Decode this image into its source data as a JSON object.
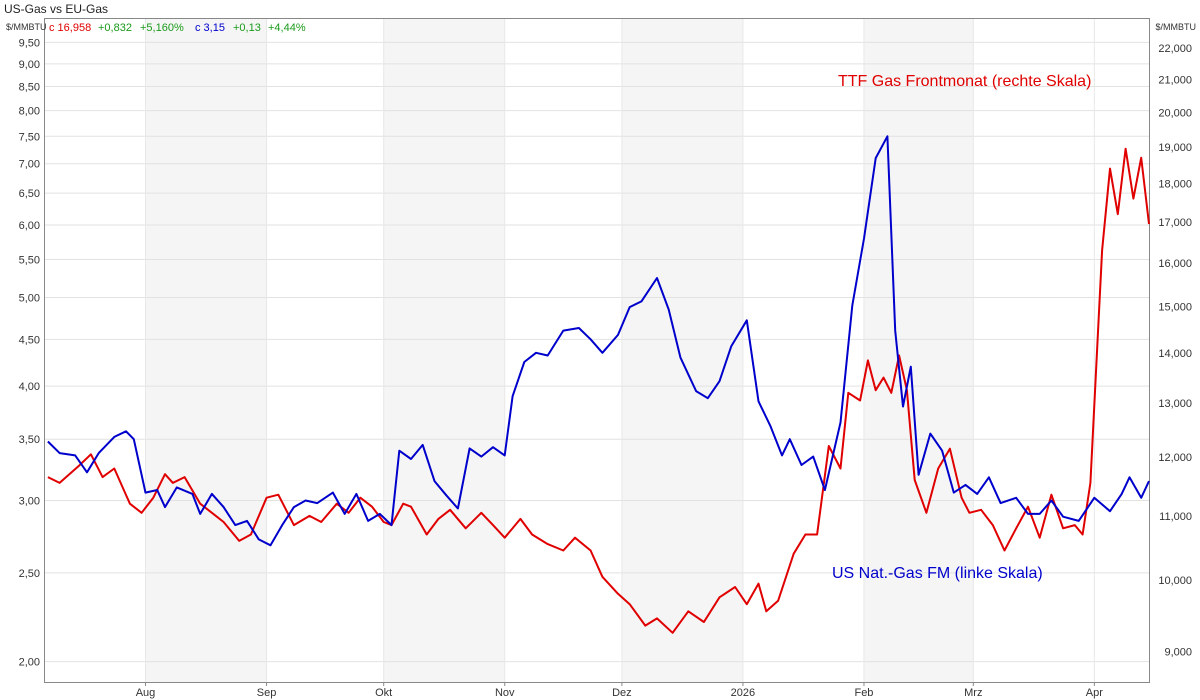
{
  "chart_data": {
    "type": "line",
    "title": "US-Gas vs EU-Gas",
    "left_axis": {
      "unit": "$/MMBTU",
      "scale": "log",
      "range": [
        1.9,
        10.1
      ],
      "ticks": [
        "2,00",
        "2,50",
        "3,00",
        "3,50",
        "4,00",
        "4,50",
        "5,00",
        "5,50",
        "6,00",
        "6,50",
        "7,00",
        "7,50",
        "8,00",
        "8,50",
        "9,00",
        "9,50"
      ]
    },
    "right_axis": {
      "unit": "$/MMBTU",
      "scale": "log",
      "range": [
        8.6,
        23.0
      ],
      "ticks": [
        "9,000",
        "10,000",
        "11,000",
        "12,000",
        "13,000",
        "14,000",
        "15,000",
        "16,000",
        "17,000",
        "18,000",
        "19,000",
        "20,000",
        "21,000",
        "22,000"
      ]
    },
    "x_axis": {
      "ticks": [
        {
          "label": "Aug",
          "date": "2025-08-01"
        },
        {
          "label": "Sep",
          "date": "2025-09-01"
        },
        {
          "label": "Okt",
          "date": "2025-10-01"
        },
        {
          "label": "Nov",
          "date": "2025-11-01"
        },
        {
          "label": "Dez",
          "date": "2025-12-01"
        },
        {
          "label": "2026",
          "date": "2026-01-01"
        },
        {
          "label": "Feb",
          "date": "2026-02-01"
        },
        {
          "label": "Mrz",
          "date": "2026-03-01"
        },
        {
          "label": "Apr",
          "date": "2026-04-01"
        }
      ],
      "range": [
        "2025-07-06",
        "2026-04-15"
      ]
    },
    "grid": true,
    "legend": {
      "ttf": {
        "close_label": "c 16,958",
        "change": "+0,832",
        "change_pct": "+5,160%"
      },
      "us": {
        "close_label": "c 3,15",
        "change": "+0,13",
        "change_pct": "+4,44%"
      }
    },
    "series": [
      {
        "name": "TTF Gas Frontmonat (rechte Skala)",
        "color": "#e00000",
        "axis": "right",
        "points": [
          [
            "2025-07-07",
            11.65
          ],
          [
            "2025-07-10",
            11.55
          ],
          [
            "2025-07-15",
            11.85
          ],
          [
            "2025-07-18",
            12.05
          ],
          [
            "2025-07-21",
            11.65
          ],
          [
            "2025-07-24",
            11.8
          ],
          [
            "2025-07-28",
            11.2
          ],
          [
            "2025-07-31",
            11.05
          ],
          [
            "2025-08-03",
            11.3
          ],
          [
            "2025-08-06",
            11.7
          ],
          [
            "2025-08-08",
            11.55
          ],
          [
            "2025-08-11",
            11.65
          ],
          [
            "2025-08-15",
            11.2
          ],
          [
            "2025-08-18",
            11.05
          ],
          [
            "2025-08-21",
            10.9
          ],
          [
            "2025-08-25",
            10.6
          ],
          [
            "2025-08-28",
            10.7
          ],
          [
            "2025-09-01",
            11.3
          ],
          [
            "2025-09-04",
            11.35
          ],
          [
            "2025-09-08",
            10.85
          ],
          [
            "2025-09-12",
            11.0
          ],
          [
            "2025-09-15",
            10.9
          ],
          [
            "2025-09-19",
            11.2
          ],
          [
            "2025-09-22",
            11.05
          ],
          [
            "2025-09-25",
            11.3
          ],
          [
            "2025-09-28",
            11.15
          ],
          [
            "2025-10-01",
            10.9
          ],
          [
            "2025-10-03",
            10.85
          ],
          [
            "2025-10-06",
            11.2
          ],
          [
            "2025-10-08",
            11.15
          ],
          [
            "2025-10-12",
            10.7
          ],
          [
            "2025-10-15",
            10.95
          ],
          [
            "2025-10-18",
            11.1
          ],
          [
            "2025-10-22",
            10.8
          ],
          [
            "2025-10-26",
            11.05
          ],
          [
            "2025-10-29",
            10.85
          ],
          [
            "2025-11-01",
            10.65
          ],
          [
            "2025-11-05",
            10.95
          ],
          [
            "2025-11-08",
            10.7
          ],
          [
            "2025-11-12",
            10.55
          ],
          [
            "2025-11-16",
            10.45
          ],
          [
            "2025-11-19",
            10.65
          ],
          [
            "2025-11-23",
            10.45
          ],
          [
            "2025-11-26",
            10.05
          ],
          [
            "2025-11-30",
            9.8
          ],
          [
            "2025-12-03",
            9.65
          ],
          [
            "2025-12-07",
            9.35
          ],
          [
            "2025-12-10",
            9.45
          ],
          [
            "2025-12-14",
            9.25
          ],
          [
            "2025-12-18",
            9.55
          ],
          [
            "2025-12-22",
            9.4
          ],
          [
            "2025-12-26",
            9.75
          ],
          [
            "2025-12-30",
            9.9
          ],
          [
            "2026-01-02",
            9.65
          ],
          [
            "2026-01-05",
            9.95
          ],
          [
            "2026-01-07",
            9.55
          ],
          [
            "2026-01-10",
            9.7
          ],
          [
            "2026-01-14",
            10.4
          ],
          [
            "2026-01-17",
            10.7
          ],
          [
            "2026-01-20",
            10.7
          ],
          [
            "2026-01-23",
            12.2
          ],
          [
            "2026-01-26",
            11.8
          ],
          [
            "2026-01-28",
            13.2
          ],
          [
            "2026-01-31",
            13.05
          ],
          [
            "2026-02-02",
            13.85
          ],
          [
            "2026-02-04",
            13.25
          ],
          [
            "2026-02-06",
            13.5
          ],
          [
            "2026-02-08",
            13.2
          ],
          [
            "2026-02-10",
            13.95
          ],
          [
            "2026-02-12",
            13.25
          ],
          [
            "2026-02-14",
            11.6
          ],
          [
            "2026-02-17",
            11.05
          ],
          [
            "2026-02-20",
            11.8
          ],
          [
            "2026-02-23",
            12.15
          ],
          [
            "2026-02-26",
            11.3
          ],
          [
            "2026-02-28",
            11.05
          ],
          [
            "2026-03-03",
            11.1
          ],
          [
            "2026-03-06",
            10.85
          ],
          [
            "2026-03-09",
            10.45
          ],
          [
            "2026-03-12",
            10.8
          ],
          [
            "2026-03-15",
            11.15
          ],
          [
            "2026-03-18",
            10.65
          ],
          [
            "2026-03-21",
            11.35
          ],
          [
            "2026-03-24",
            10.8
          ],
          [
            "2026-03-27",
            10.85
          ],
          [
            "2026-03-29",
            10.7
          ],
          [
            "2026-03-31",
            11.55
          ],
          [
            "2026-04-03",
            16.3
          ],
          [
            "2026-04-05",
            18.4
          ],
          [
            "2026-04-07",
            17.2
          ],
          [
            "2026-04-09",
            18.95
          ],
          [
            "2026-04-11",
            17.6
          ],
          [
            "2026-04-13",
            18.7
          ],
          [
            "2026-04-15",
            16.95
          ]
        ]
      },
      {
        "name": "US Nat.-Gas FM (linke Skala)",
        "color": "#0000cc",
        "axis": "left",
        "points": [
          [
            "2025-07-07",
            3.48
          ],
          [
            "2025-07-10",
            3.38
          ],
          [
            "2025-07-14",
            3.36
          ],
          [
            "2025-07-17",
            3.22
          ],
          [
            "2025-07-20",
            3.38
          ],
          [
            "2025-07-24",
            3.52
          ],
          [
            "2025-07-27",
            3.57
          ],
          [
            "2025-07-29",
            3.5
          ],
          [
            "2025-08-01",
            3.06
          ],
          [
            "2025-08-04",
            3.08
          ],
          [
            "2025-08-06",
            2.95
          ],
          [
            "2025-08-09",
            3.1
          ],
          [
            "2025-08-13",
            3.05
          ],
          [
            "2025-08-15",
            2.9
          ],
          [
            "2025-08-18",
            3.05
          ],
          [
            "2025-08-21",
            2.95
          ],
          [
            "2025-08-24",
            2.82
          ],
          [
            "2025-08-27",
            2.85
          ],
          [
            "2025-08-30",
            2.72
          ],
          [
            "2025-09-02",
            2.68
          ],
          [
            "2025-09-05",
            2.82
          ],
          [
            "2025-09-08",
            2.95
          ],
          [
            "2025-09-11",
            3.0
          ],
          [
            "2025-09-14",
            2.98
          ],
          [
            "2025-09-18",
            3.06
          ],
          [
            "2025-09-21",
            2.9
          ],
          [
            "2025-09-24",
            3.05
          ],
          [
            "2025-09-27",
            2.85
          ],
          [
            "2025-09-30",
            2.9
          ],
          [
            "2025-10-03",
            2.82
          ],
          [
            "2025-10-05",
            3.4
          ],
          [
            "2025-10-08",
            3.33
          ],
          [
            "2025-10-11",
            3.45
          ],
          [
            "2025-10-14",
            3.15
          ],
          [
            "2025-10-17",
            3.04
          ],
          [
            "2025-10-20",
            2.94
          ],
          [
            "2025-10-23",
            3.42
          ],
          [
            "2025-10-26",
            3.35
          ],
          [
            "2025-10-29",
            3.43
          ],
          [
            "2025-11-01",
            3.36
          ],
          [
            "2025-11-03",
            3.9
          ],
          [
            "2025-11-06",
            4.25
          ],
          [
            "2025-11-09",
            4.35
          ],
          [
            "2025-11-12",
            4.32
          ],
          [
            "2025-11-16",
            4.6
          ],
          [
            "2025-11-20",
            4.63
          ],
          [
            "2025-11-23",
            4.5
          ],
          [
            "2025-11-26",
            4.35
          ],
          [
            "2025-11-30",
            4.55
          ],
          [
            "2025-12-03",
            4.88
          ],
          [
            "2025-12-06",
            4.95
          ],
          [
            "2025-12-10",
            5.25
          ],
          [
            "2025-12-13",
            4.85
          ],
          [
            "2025-12-16",
            4.3
          ],
          [
            "2025-12-20",
            3.95
          ],
          [
            "2025-12-23",
            3.88
          ],
          [
            "2025-12-26",
            4.05
          ],
          [
            "2025-12-29",
            4.42
          ],
          [
            "2026-01-02",
            4.72
          ],
          [
            "2026-01-05",
            3.85
          ],
          [
            "2026-01-08",
            3.62
          ],
          [
            "2026-01-11",
            3.36
          ],
          [
            "2026-01-13",
            3.5
          ],
          [
            "2026-01-16",
            3.28
          ],
          [
            "2026-01-19",
            3.35
          ],
          [
            "2026-01-22",
            3.08
          ],
          [
            "2026-01-26",
            3.65
          ],
          [
            "2026-01-29",
            4.9
          ],
          [
            "2026-02-01",
            5.8
          ],
          [
            "2026-02-04",
            7.1
          ],
          [
            "2026-02-07",
            7.5
          ],
          [
            "2026-02-09",
            4.6
          ],
          [
            "2026-02-11",
            3.8
          ],
          [
            "2026-02-13",
            4.2
          ],
          [
            "2026-02-15",
            3.2
          ],
          [
            "2026-02-18",
            3.55
          ],
          [
            "2026-02-21",
            3.4
          ],
          [
            "2026-02-24",
            3.06
          ],
          [
            "2026-02-27",
            3.12
          ],
          [
            "2026-03-02",
            3.05
          ],
          [
            "2026-03-05",
            3.18
          ],
          [
            "2026-03-08",
            2.98
          ],
          [
            "2026-03-12",
            3.02
          ],
          [
            "2026-03-15",
            2.9
          ],
          [
            "2026-03-18",
            2.9
          ],
          [
            "2026-03-21",
            3.0
          ],
          [
            "2026-03-24",
            2.88
          ],
          [
            "2026-03-28",
            2.85
          ],
          [
            "2026-04-01",
            3.02
          ],
          [
            "2026-04-05",
            2.92
          ],
          [
            "2026-04-08",
            3.05
          ],
          [
            "2026-04-10",
            3.18
          ],
          [
            "2026-04-13",
            3.02
          ],
          [
            "2026-04-15",
            3.15
          ]
        ]
      }
    ]
  }
}
